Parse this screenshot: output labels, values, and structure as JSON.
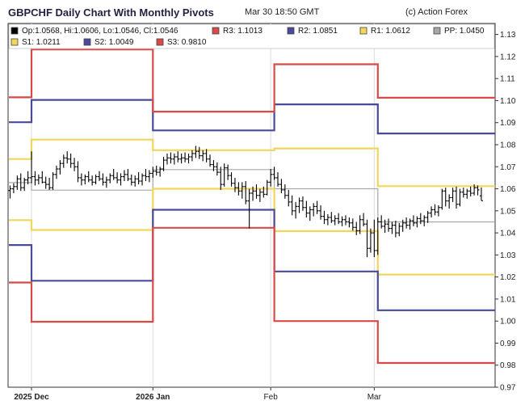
{
  "header": {
    "title": "GBPCHF Daily Chart With Monthly Pivots",
    "timestamp": "Mar 30 18:50 GMT",
    "credit": "(c) Action Forex"
  },
  "chart_data": {
    "type": "candlestick",
    "symbol": "GBPCHF",
    "ylim": [
      0.97,
      1.135
    ],
    "y_ticks": [
      0.97,
      0.98,
      0.99,
      1.0,
      1.01,
      1.02,
      1.03,
      1.04,
      1.05,
      1.06,
      1.07,
      1.08,
      1.09,
      1.1,
      1.11,
      1.12,
      1.13
    ],
    "x_labels": [
      {
        "label": "2025 Dec",
        "bold": true,
        "index": 6
      },
      {
        "label": "2026 Jan",
        "bold": true,
        "index": 40
      },
      {
        "label": "Feb",
        "bold": false,
        "index": 73
      },
      {
        "label": "Mar",
        "bold": false,
        "index": 102
      }
    ],
    "legend": [
      {
        "key": "ohlc",
        "text": "Op:1.0568, Hi:1.0606, Lo:1.0546, Cl:1.0546",
        "color": "#000000"
      },
      {
        "key": "R3",
        "text": "R3: 1.1013",
        "color": "#d84a4a"
      },
      {
        "key": "R2",
        "text": "R2: 1.0851",
        "color": "#4a4a9a"
      },
      {
        "key": "R1",
        "text": "R1: 1.0612",
        "color": "#f2d65a"
      },
      {
        "key": "PP",
        "text": "PP: 1.0450",
        "color": "#a8a8a8"
      },
      {
        "key": "S1",
        "text": "S1: 1.0211",
        "color": "#f2d65a"
      },
      {
        "key": "S2",
        "text": "S2: 1.0049",
        "color": "#4a4a9a"
      },
      {
        "key": "S3",
        "text": "S3: 0.9810",
        "color": "#d84a4a"
      }
    ],
    "pivot_periods": [
      {
        "start": -1,
        "end": 6,
        "R3": 1.1015,
        "R2": 1.0902,
        "R1": 1.0735,
        "PP": 1.0628,
        "S1": 1.0458,
        "S2": 1.0345,
        "S3": 1.0175
      },
      {
        "start": 6,
        "end": 40,
        "R3": 1.1232,
        "R2": 1.1003,
        "R1": 1.0823,
        "PP": 1.0594,
        "S1": 1.0413,
        "S2": 1.0183,
        "S3": 0.9997
      },
      {
        "start": 40,
        "end": 74,
        "R3": 1.095,
        "R2": 1.0865,
        "R1": 1.0775,
        "PP": 1.0687,
        "S1": 1.06,
        "S2": 1.0505,
        "S3": 1.0423
      },
      {
        "start": 74,
        "end": 103,
        "R3": 1.1165,
        "R2": 1.0983,
        "R1": 1.0783,
        "PP": 1.06,
        "S1": 1.0408,
        "S2": 1.0225,
        "S3": 1.0
      },
      {
        "start": 103,
        "end": 136,
        "R3": 1.1013,
        "R2": 1.0851,
        "R1": 1.0612,
        "PP": 1.045,
        "S1": 1.0211,
        "S2": 1.0049,
        "S3": 0.981
      }
    ],
    "ohlc": [
      {
        "o": 1.0592,
        "h": 1.0615,
        "l": 1.0556,
        "c": 1.06
      },
      {
        "o": 1.06,
        "h": 1.0625,
        "l": 1.058,
        "c": 1.061
      },
      {
        "o": 1.061,
        "h": 1.066,
        "l": 1.0595,
        "c": 1.0645
      },
      {
        "o": 1.0645,
        "h": 1.067,
        "l": 1.059,
        "c": 1.0605
      },
      {
        "o": 1.0605,
        "h": 1.065,
        "l": 1.059,
        "c": 1.064
      },
      {
        "o": 1.064,
        "h": 1.068,
        "l": 1.062,
        "c": 1.065
      },
      {
        "o": 1.065,
        "h": 1.077,
        "l": 1.0625,
        "c": 1.0655
      },
      {
        "o": 1.0655,
        "h": 1.068,
        "l": 1.0615,
        "c": 1.064
      },
      {
        "o": 1.064,
        "h": 1.0665,
        "l": 1.062,
        "c": 1.065
      },
      {
        "o": 1.065,
        "h": 1.068,
        "l": 1.0625,
        "c": 1.063
      },
      {
        "o": 1.063,
        "h": 1.0655,
        "l": 1.06,
        "c": 1.062
      },
      {
        "o": 1.062,
        "h": 1.065,
        "l": 1.0595,
        "c": 1.0605
      },
      {
        "o": 1.0605,
        "h": 1.0675,
        "l": 1.0595,
        "c": 1.0665
      },
      {
        "o": 1.0665,
        "h": 1.0705,
        "l": 1.0645,
        "c": 1.069
      },
      {
        "o": 1.069,
        "h": 1.073,
        "l": 1.0665,
        "c": 1.0715
      },
      {
        "o": 1.0715,
        "h": 1.0755,
        "l": 1.0695,
        "c": 1.074
      },
      {
        "o": 1.074,
        "h": 1.077,
        "l": 1.0715,
        "c": 1.0735
      },
      {
        "o": 1.0735,
        "h": 1.076,
        "l": 1.0695,
        "c": 1.0715
      },
      {
        "o": 1.0715,
        "h": 1.074,
        "l": 1.068,
        "c": 1.07
      },
      {
        "o": 1.07,
        "h": 1.0725,
        "l": 1.063,
        "c": 1.065
      },
      {
        "o": 1.065,
        "h": 1.067,
        "l": 1.0615,
        "c": 1.064
      },
      {
        "o": 1.064,
        "h": 1.0665,
        "l": 1.062,
        "c": 1.0655
      },
      {
        "o": 1.0655,
        "h": 1.068,
        "l": 1.063,
        "c": 1.064
      },
      {
        "o": 1.064,
        "h": 1.066,
        "l": 1.0615,
        "c": 1.063
      },
      {
        "o": 1.063,
        "h": 1.0665,
        "l": 1.062,
        "c": 1.0655
      },
      {
        "o": 1.0655,
        "h": 1.068,
        "l": 1.0635,
        "c": 1.0645
      },
      {
        "o": 1.0645,
        "h": 1.067,
        "l": 1.0615,
        "c": 1.063
      },
      {
        "o": 1.063,
        "h": 1.0655,
        "l": 1.0605,
        "c": 1.064
      },
      {
        "o": 1.064,
        "h": 1.067,
        "l": 1.0625,
        "c": 1.066
      },
      {
        "o": 1.066,
        "h": 1.069,
        "l": 1.064,
        "c": 1.065
      },
      {
        "o": 1.065,
        "h": 1.0675,
        "l": 1.0625,
        "c": 1.064
      },
      {
        "o": 1.064,
        "h": 1.067,
        "l": 1.0615,
        "c": 1.0655
      },
      {
        "o": 1.0655,
        "h": 1.0685,
        "l": 1.0635,
        "c": 1.0665
      },
      {
        "o": 1.0665,
        "h": 1.069,
        "l": 1.0635,
        "c": 1.0645
      },
      {
        "o": 1.0645,
        "h": 1.0665,
        "l": 1.0615,
        "c": 1.063
      },
      {
        "o": 1.063,
        "h": 1.066,
        "l": 1.061,
        "c": 1.0645
      },
      {
        "o": 1.0645,
        "h": 1.0675,
        "l": 1.062,
        "c": 1.0635
      },
      {
        "o": 1.0635,
        "h": 1.067,
        "l": 1.0615,
        "c": 1.066
      },
      {
        "o": 1.066,
        "h": 1.069,
        "l": 1.0635,
        "c": 1.0655
      },
      {
        "o": 1.0655,
        "h": 1.0685,
        "l": 1.063,
        "c": 1.067
      },
      {
        "o": 1.067,
        "h": 1.07,
        "l": 1.065,
        "c": 1.068
      },
      {
        "o": 1.068,
        "h": 1.0705,
        "l": 1.066,
        "c": 1.0675
      },
      {
        "o": 1.0675,
        "h": 1.07,
        "l": 1.0655,
        "c": 1.069
      },
      {
        "o": 1.069,
        "h": 1.0745,
        "l": 1.068,
        "c": 1.073
      },
      {
        "o": 1.073,
        "h": 1.076,
        "l": 1.071,
        "c": 1.074
      },
      {
        "o": 1.074,
        "h": 1.0765,
        "l": 1.0715,
        "c": 1.0735
      },
      {
        "o": 1.0735,
        "h": 1.076,
        "l": 1.071,
        "c": 1.0745
      },
      {
        "o": 1.0745,
        "h": 1.077,
        "l": 1.072,
        "c": 1.0735
      },
      {
        "o": 1.0735,
        "h": 1.076,
        "l": 1.0715,
        "c": 1.074
      },
      {
        "o": 1.074,
        "h": 1.0765,
        "l": 1.072,
        "c": 1.0735
      },
      {
        "o": 1.0735,
        "h": 1.076,
        "l": 1.0715,
        "c": 1.0745
      },
      {
        "o": 1.0745,
        "h": 1.0775,
        "l": 1.0725,
        "c": 1.076
      },
      {
        "o": 1.076,
        "h": 1.0795,
        "l": 1.074,
        "c": 1.077
      },
      {
        "o": 1.077,
        "h": 1.079,
        "l": 1.0735,
        "c": 1.075
      },
      {
        "o": 1.075,
        "h": 1.0775,
        "l": 1.0725,
        "c": 1.076
      },
      {
        "o": 1.076,
        "h": 1.078,
        "l": 1.072,
        "c": 1.0735
      },
      {
        "o": 1.0735,
        "h": 1.0755,
        "l": 1.07,
        "c": 1.071
      },
      {
        "o": 1.071,
        "h": 1.073,
        "l": 1.068,
        "c": 1.07
      },
      {
        "o": 1.07,
        "h": 1.072,
        "l": 1.066,
        "c": 1.0675
      },
      {
        "o": 1.0675,
        "h": 1.07,
        "l": 1.0595,
        "c": 1.062
      },
      {
        "o": 1.062,
        "h": 1.0715,
        "l": 1.061,
        "c": 1.0695
      },
      {
        "o": 1.0695,
        "h": 1.071,
        "l": 1.064,
        "c": 1.066
      },
      {
        "o": 1.066,
        "h": 1.0675,
        "l": 1.061,
        "c": 1.0625
      },
      {
        "o": 1.0625,
        "h": 1.065,
        "l": 1.0585,
        "c": 1.0605
      },
      {
        "o": 1.0605,
        "h": 1.063,
        "l": 1.057,
        "c": 1.059
      },
      {
        "o": 1.059,
        "h": 1.063,
        "l": 1.0555,
        "c": 1.061
      },
      {
        "o": 1.061,
        "h": 1.0635,
        "l": 1.053,
        "c": 1.0545
      },
      {
        "o": 1.0545,
        "h": 1.06,
        "l": 1.042,
        "c": 1.058
      },
      {
        "o": 1.058,
        "h": 1.061,
        "l": 1.0545,
        "c": 1.059
      },
      {
        "o": 1.059,
        "h": 1.062,
        "l": 1.0555,
        "c": 1.057
      },
      {
        "o": 1.057,
        "h": 1.06,
        "l": 1.054,
        "c": 1.0585
      },
      {
        "o": 1.0585,
        "h": 1.061,
        "l": 1.056,
        "c": 1.0575
      },
      {
        "o": 1.0575,
        "h": 1.064,
        "l": 1.057,
        "c": 1.063
      },
      {
        "o": 1.063,
        "h": 1.069,
        "l": 1.061,
        "c": 1.0665
      },
      {
        "o": 1.0665,
        "h": 1.07,
        "l": 1.064,
        "c": 1.065
      },
      {
        "o": 1.065,
        "h": 1.0675,
        "l": 1.061,
        "c": 1.062
      },
      {
        "o": 1.062,
        "h": 1.0645,
        "l": 1.058,
        "c": 1.0595
      },
      {
        "o": 1.0595,
        "h": 1.062,
        "l": 1.0555,
        "c": 1.057
      },
      {
        "o": 1.057,
        "h": 1.0595,
        "l": 1.052,
        "c": 1.054
      },
      {
        "o": 1.054,
        "h": 1.057,
        "l": 1.048,
        "c": 1.05
      },
      {
        "o": 1.05,
        "h": 1.054,
        "l": 1.0465,
        "c": 1.052
      },
      {
        "o": 1.052,
        "h": 1.056,
        "l": 1.049,
        "c": 1.0545
      },
      {
        "o": 1.0545,
        "h": 1.0565,
        "l": 1.05,
        "c": 1.0515
      },
      {
        "o": 1.0515,
        "h": 1.0545,
        "l": 1.047,
        "c": 1.049
      },
      {
        "o": 1.049,
        "h": 1.052,
        "l": 1.0455,
        "c": 1.0505
      },
      {
        "o": 1.0505,
        "h": 1.0535,
        "l": 1.0475,
        "c": 1.052
      },
      {
        "o": 1.052,
        "h": 1.0545,
        "l": 1.0485,
        "c": 1.05
      },
      {
        "o": 1.05,
        "h": 1.0525,
        "l": 1.046,
        "c": 1.0475
      },
      {
        "o": 1.0475,
        "h": 1.05,
        "l": 1.044,
        "c": 1.046
      },
      {
        "o": 1.046,
        "h": 1.0485,
        "l": 1.0435,
        "c": 1.047
      },
      {
        "o": 1.047,
        "h": 1.0495,
        "l": 1.0445,
        "c": 1.0455
      },
      {
        "o": 1.0455,
        "h": 1.048,
        "l": 1.0435,
        "c": 1.0465
      },
      {
        "o": 1.0465,
        "h": 1.049,
        "l": 1.044,
        "c": 1.045
      },
      {
        "o": 1.045,
        "h": 1.0475,
        "l": 1.043,
        "c": 1.046
      },
      {
        "o": 1.046,
        "h": 1.048,
        "l": 1.0435,
        "c": 1.045
      },
      {
        "o": 1.045,
        "h": 1.047,
        "l": 1.0425,
        "c": 1.0445
      },
      {
        "o": 1.0445,
        "h": 1.0465,
        "l": 1.041,
        "c": 1.0425
      },
      {
        "o": 1.0425,
        "h": 1.045,
        "l": 1.039,
        "c": 1.041
      },
      {
        "o": 1.041,
        "h": 1.048,
        "l": 1.0395,
        "c": 1.046
      },
      {
        "o": 1.046,
        "h": 1.049,
        "l": 1.043,
        "c": 1.044
      },
      {
        "o": 1.044,
        "h": 1.046,
        "l": 1.029,
        "c": 1.033
      },
      {
        "o": 1.033,
        "h": 1.042,
        "l": 1.031,
        "c": 1.04
      },
      {
        "o": 1.04,
        "h": 1.046,
        "l": 1.029,
        "c": 1.032
      },
      {
        "o": 1.032,
        "h": 1.047,
        "l": 1.03,
        "c": 1.045
      },
      {
        "o": 1.045,
        "h": 1.048,
        "l": 1.042,
        "c": 1.043
      },
      {
        "o": 1.043,
        "h": 1.046,
        "l": 1.04,
        "c": 1.044
      },
      {
        "o": 1.044,
        "h": 1.0465,
        "l": 1.0405,
        "c": 1.042
      },
      {
        "o": 1.042,
        "h": 1.045,
        "l": 1.0395,
        "c": 1.0435
      },
      {
        "o": 1.0435,
        "h": 1.0455,
        "l": 1.038,
        "c": 1.04
      },
      {
        "o": 1.04,
        "h": 1.0445,
        "l": 1.0385,
        "c": 1.043
      },
      {
        "o": 1.043,
        "h": 1.046,
        "l": 1.0405,
        "c": 1.0445
      },
      {
        "o": 1.0445,
        "h": 1.047,
        "l": 1.042,
        "c": 1.0435
      },
      {
        "o": 1.0435,
        "h": 1.0465,
        "l": 1.0415,
        "c": 1.0455
      },
      {
        "o": 1.0455,
        "h": 1.048,
        "l": 1.043,
        "c": 1.0445
      },
      {
        "o": 1.0445,
        "h": 1.0475,
        "l": 1.0425,
        "c": 1.0465
      },
      {
        "o": 1.0465,
        "h": 1.049,
        "l": 1.044,
        "c": 1.0455
      },
      {
        "o": 1.0455,
        "h": 1.048,
        "l": 1.043,
        "c": 1.047
      },
      {
        "o": 1.047,
        "h": 1.05,
        "l": 1.0445,
        "c": 1.049
      },
      {
        "o": 1.049,
        "h": 1.052,
        "l": 1.047,
        "c": 1.0505
      },
      {
        "o": 1.0505,
        "h": 1.053,
        "l": 1.048,
        "c": 1.0495
      },
      {
        "o": 1.0495,
        "h": 1.0525,
        "l": 1.0475,
        "c": 1.0515
      },
      {
        "o": 1.0515,
        "h": 1.06,
        "l": 1.0505,
        "c": 1.059
      },
      {
        "o": 1.059,
        "h": 1.0605,
        "l": 1.052,
        "c": 1.0545
      },
      {
        "o": 1.0545,
        "h": 1.0575,
        "l": 1.051,
        "c": 1.056
      },
      {
        "o": 1.056,
        "h": 1.0605,
        "l": 1.054,
        "c": 1.059
      },
      {
        "o": 1.059,
        "h": 1.061,
        "l": 1.051,
        "c": 1.053
      },
      {
        "o": 1.053,
        "h": 1.06,
        "l": 1.052,
        "c": 1.0585
      },
      {
        "o": 1.0585,
        "h": 1.0605,
        "l": 1.056,
        "c": 1.0575
      },
      {
        "o": 1.0575,
        "h": 1.06,
        "l": 1.0555,
        "c": 1.059
      },
      {
        "o": 1.059,
        "h": 1.061,
        "l": 1.0565,
        "c": 1.058
      },
      {
        "o": 1.058,
        "h": 1.062,
        "l": 1.057,
        "c": 1.0605
      },
      {
        "o": 1.0605,
        "h": 1.0615,
        "l": 1.057,
        "c": 1.0595
      },
      {
        "o": 1.0568,
        "h": 1.0606,
        "l": 1.0546,
        "c": 1.0546
      }
    ]
  }
}
